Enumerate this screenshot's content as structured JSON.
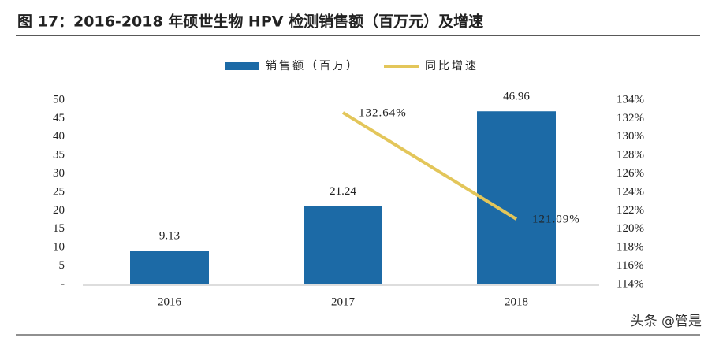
{
  "chart_data": {
    "type": "bar",
    "title": "图 17：2016-2018 年硕世生物 HPV 检测销售额（百万元）及增速",
    "categories": [
      "2016",
      "2017",
      "2018"
    ],
    "series": [
      {
        "name": "销售额（百万）",
        "type": "bar",
        "color": "#1c6aa6",
        "values": [
          9.13,
          21.24,
          46.96
        ]
      },
      {
        "name": "同比增速",
        "type": "line",
        "axis": "y2",
        "color": "#e3c65a",
        "values": [
          null,
          132.64,
          121.09
        ],
        "value_labels": [
          null,
          "132.64%",
          "121.09%"
        ]
      }
    ],
    "ylim": [
      0,
      50
    ],
    "yticks": [
      {
        "value": 0,
        "label": "-"
      },
      5,
      10,
      15,
      20,
      25,
      30,
      35,
      40,
      45,
      50
    ],
    "y2lim": [
      114,
      134
    ],
    "y2ticks": [
      {
        "value": 114,
        "label": "114%"
      },
      {
        "value": 116,
        "label": "116%"
      },
      {
        "value": 118,
        "label": "118%"
      },
      {
        "value": 120,
        "label": "120%"
      },
      {
        "value": 122,
        "label": "122%"
      },
      {
        "value": 124,
        "label": "124%"
      },
      {
        "value": 126,
        "label": "126%"
      },
      {
        "value": 128,
        "label": "128%"
      },
      {
        "value": 130,
        "label": "130%"
      },
      {
        "value": 132,
        "label": "132%"
      },
      {
        "value": 134,
        "label": "134%"
      }
    ],
    "legend": "top",
    "grid": false
  },
  "watermark": "头条 @管是"
}
